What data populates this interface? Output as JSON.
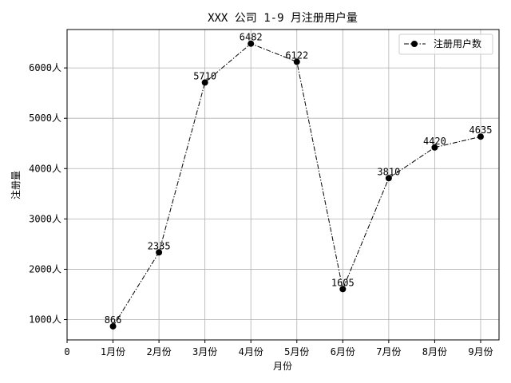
{
  "chart_data": {
    "type": "line",
    "title": "XXX 公司 1-9 月注册用户量",
    "xlabel": "月份",
    "ylabel": "注册量",
    "x_tick_labels": [
      "0",
      "1月份",
      "2月份",
      "3月份",
      "4月份",
      "5月份",
      "6月份",
      "7月份",
      "8月份",
      "9月份"
    ],
    "x_ticks": [
      0,
      1,
      2,
      3,
      4,
      5,
      6,
      7,
      8,
      9
    ],
    "y_tick_labels": [
      "1000人",
      "2000人",
      "3000人",
      "4000人",
      "5000人",
      "6000人"
    ],
    "y_ticks": [
      1000,
      2000,
      3000,
      4000,
      5000,
      6000
    ],
    "xlim": [
      0,
      9.4
    ],
    "ylim": [
      596,
      6763
    ],
    "grid": true,
    "legend_position": "top-right",
    "series": [
      {
        "name": "注册用户数",
        "color": "#000000",
        "line_style": "dashdot",
        "marker": "circle",
        "x": [
          1,
          2,
          3,
          4,
          5,
          6,
          7,
          8,
          9
        ],
        "values": [
          866,
          2335,
          5710,
          6482,
          6122,
          1605,
          3810,
          4420,
          4635
        ],
        "data_labels": [
          "866",
          "2335",
          "5710",
          "6482",
          "6122",
          "1605",
          "3810",
          "4420",
          "4635"
        ]
      }
    ]
  }
}
